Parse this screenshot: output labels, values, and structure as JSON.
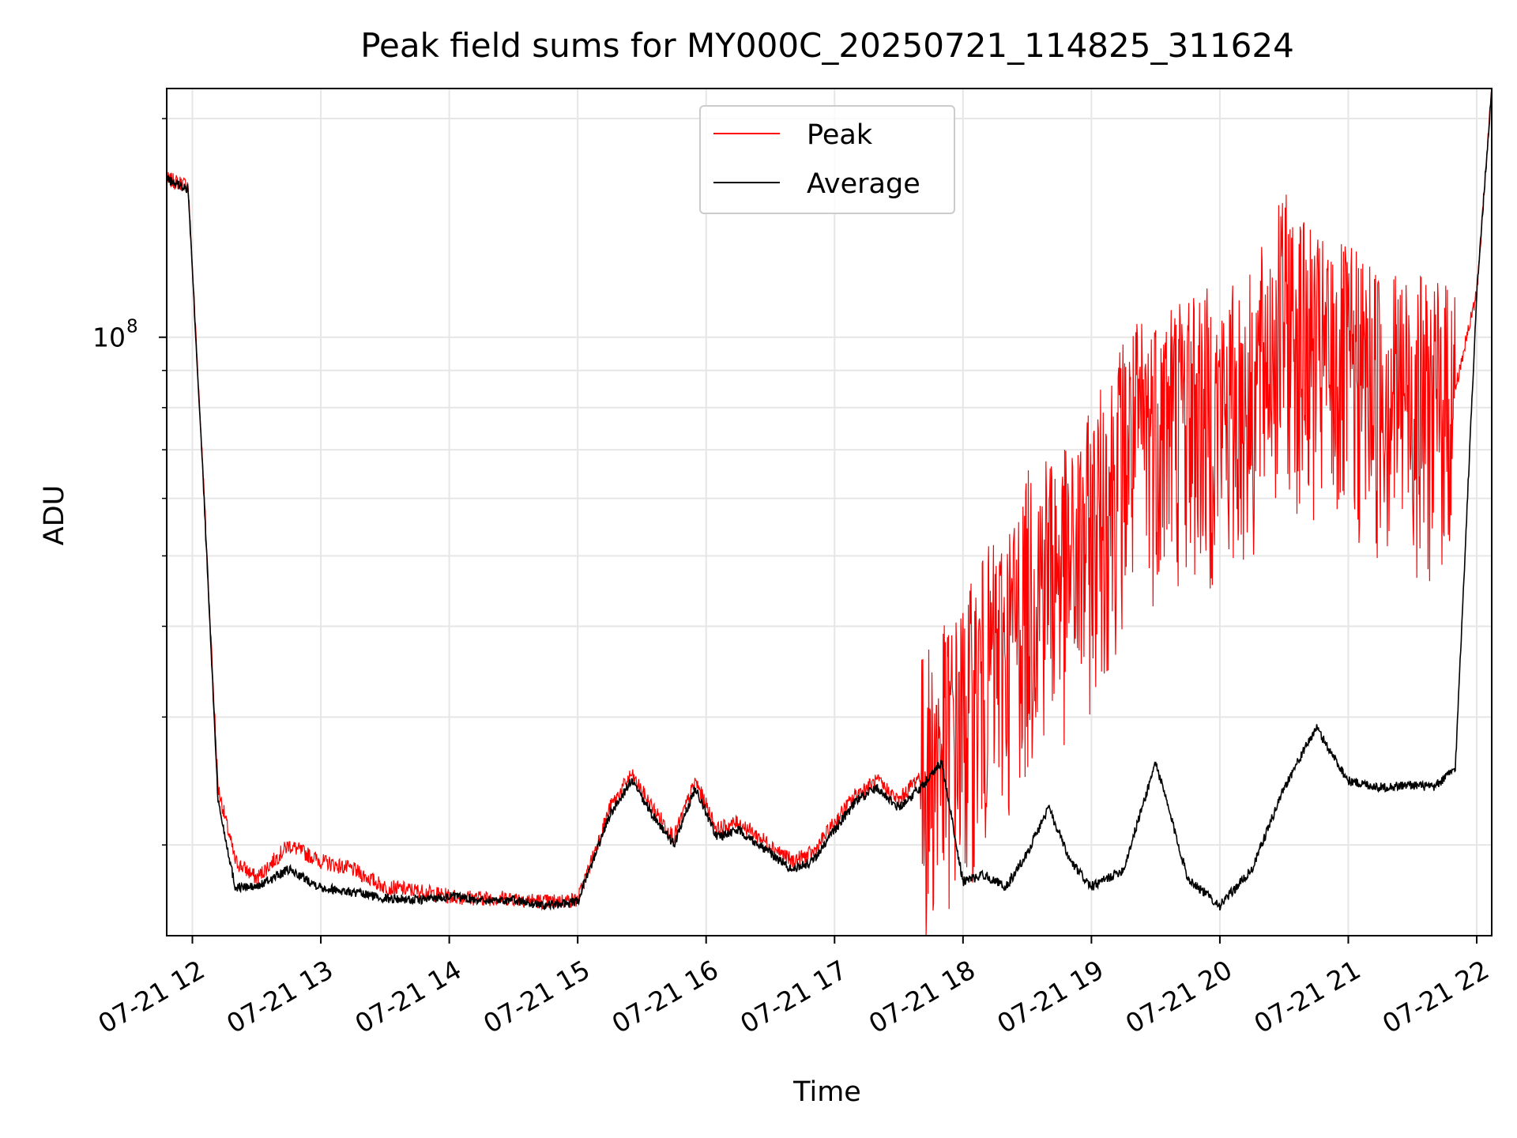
{
  "chart_data": {
    "type": "line",
    "title": "Peak field sums for MY000C_20250721_114825_311624",
    "xlabel": "Time",
    "ylabel": "ADU",
    "yscale": "log",
    "ylim": [
      15000000,
      220000000
    ],
    "xlim": [
      "07-21 11:48",
      "07-21 22:07"
    ],
    "x_ticks": [
      "07-21 12",
      "07-21 13",
      "07-21 14",
      "07-21 15",
      "07-21 16",
      "07-21 17",
      "07-21 18",
      "07-21 19",
      "07-21 20",
      "07-21 21",
      "07-21 22"
    ],
    "y_major_tick": {
      "base": "10",
      "exponent": "8"
    },
    "grid": true,
    "legend_position": "upper center",
    "colors": {
      "peak": "#ff0000",
      "average": "#000000"
    },
    "series": [
      {
        "name": "Peak",
        "x": [
          "07-21 11:48",
          "07-21 11:58",
          "07-21 12:05",
          "07-21 12:12",
          "07-21 12:20",
          "07-21 12:30",
          "07-21 12:45",
          "07-21 13:00",
          "07-21 13:15",
          "07-21 13:30",
          "07-21 13:45",
          "07-21 14:00",
          "07-21 14:15",
          "07-21 14:30",
          "07-21 14:45",
          "07-21 15:00",
          "07-21 15:15",
          "07-21 15:25",
          "07-21 15:35",
          "07-21 15:45",
          "07-21 15:55",
          "07-21 16:05",
          "07-21 16:15",
          "07-21 16:30",
          "07-21 16:40",
          "07-21 16:50",
          "07-21 17:00",
          "07-21 17:10",
          "07-21 17:20",
          "07-21 17:30",
          "07-21 17:40",
          "07-21 17:50",
          "07-21 18:00",
          "07-21 18:10",
          "07-21 18:20",
          "07-21 18:30",
          "07-21 18:40",
          "07-21 18:50",
          "07-21 19:00",
          "07-21 19:15",
          "07-21 19:30",
          "07-21 19:45",
          "07-21 20:00",
          "07-21 20:15",
          "07-21 20:30",
          "07-21 20:45",
          "07-21 21:00",
          "07-21 21:15",
          "07-21 21:30",
          "07-21 21:40",
          "07-21 21:50",
          "07-21 22:00",
          "07-21 22:07"
        ],
        "y": [
          165000000,
          162000000,
          65000000,
          24000000,
          19000000,
          18000000,
          20000000,
          19000000,
          18500000,
          17500000,
          17300000,
          17000000,
          16900000,
          16900000,
          16700000,
          16800000,
          22500000,
          25000000,
          22500000,
          20500000,
          24500000,
          21000000,
          21500000,
          20000000,
          19000000,
          19500000,
          21500000,
          23500000,
          24500000,
          23000000,
          25000000,
          27500000,
          30000000,
          35000000,
          38000000,
          45000000,
          50000000,
          48000000,
          55000000,
          70000000,
          78000000,
          82000000,
          80000000,
          85000000,
          110000000,
          95000000,
          92000000,
          88000000,
          85000000,
          82000000,
          85000000,
          115000000,
          220000000
        ]
      },
      {
        "name": "Average",
        "x": [
          "07-21 11:48",
          "07-21 11:58",
          "07-21 12:05",
          "07-21 12:12",
          "07-21 12:20",
          "07-21 12:30",
          "07-21 12:45",
          "07-21 13:00",
          "07-21 13:15",
          "07-21 13:30",
          "07-21 13:45",
          "07-21 14:00",
          "07-21 14:15",
          "07-21 14:30",
          "07-21 14:45",
          "07-21 15:00",
          "07-21 15:15",
          "07-21 15:25",
          "07-21 15:35",
          "07-21 15:45",
          "07-21 15:55",
          "07-21 16:05",
          "07-21 16:15",
          "07-21 16:30",
          "07-21 16:40",
          "07-21 16:50",
          "07-21 17:00",
          "07-21 17:10",
          "07-21 17:20",
          "07-21 17:30",
          "07-21 17:40",
          "07-21 17:50",
          "07-21 18:00",
          "07-21 18:10",
          "07-21 18:20",
          "07-21 18:30",
          "07-21 18:40",
          "07-21 18:50",
          "07-21 19:00",
          "07-21 19:15",
          "07-21 19:30",
          "07-21 19:45",
          "07-21 20:00",
          "07-21 20:15",
          "07-21 20:30",
          "07-21 20:45",
          "07-21 21:00",
          "07-21 21:15",
          "07-21 21:30",
          "07-21 21:40",
          "07-21 21:50",
          "07-21 22:00",
          "07-21 22:07"
        ],
        "y": [
          165000000,
          160000000,
          64000000,
          23000000,
          17500000,
          17500000,
          18500000,
          17500000,
          17200000,
          16900000,
          16800000,
          17000000,
          16800000,
          16800000,
          16500000,
          16700000,
          22000000,
          24500000,
          22000000,
          20000000,
          24000000,
          20500000,
          21000000,
          19500000,
          18500000,
          19000000,
          21000000,
          23000000,
          24000000,
          22500000,
          24000000,
          26000000,
          17800000,
          18200000,
          17500000,
          19500000,
          22500000,
          19000000,
          17500000,
          18500000,
          26000000,
          18000000,
          16500000,
          18500000,
          24000000,
          29000000,
          24500000,
          24000000,
          24200000,
          24000000,
          25500000,
          115000000,
          220000000
        ]
      }
    ]
  }
}
